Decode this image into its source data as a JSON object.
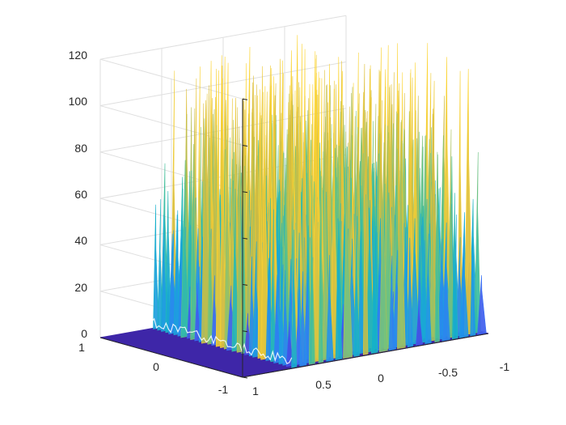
{
  "figure": {
    "background": "#ffffff",
    "axis_color": "#262626",
    "grid_color": "#dfdfdf"
  },
  "chart_data": {
    "type": "surface",
    "colormap": "parula",
    "colormap_stops": [
      "#3e26a8",
      "#4745e0",
      "#3a6ef7",
      "#2196e9",
      "#15b1c9",
      "#3bbf9e",
      "#8fc36c",
      "#d6ba3d",
      "#fcd432"
    ],
    "grid": true,
    "view": "3d-perspective",
    "xlim": [
      -1,
      1
    ],
    "ylim": [
      -1,
      1
    ],
    "zlim": [
      0,
      120
    ],
    "x_ticks": [
      "1",
      "0.5",
      "0",
      "-0.5",
      "-1"
    ],
    "y_ticks": [
      "1",
      "0",
      "-1"
    ],
    "z_ticks": [
      "0",
      "20",
      "40",
      "60",
      "80",
      "100",
      "120"
    ],
    "title": "",
    "xlabel": "",
    "ylabel": "",
    "zlabel": "",
    "floor_value": 0,
    "noisy_region": {
      "x_range": [
        -1,
        0.6
      ],
      "y_range": [
        -1,
        1
      ],
      "peak_max": 120,
      "typical_peak_range": [
        40,
        110
      ]
    }
  }
}
